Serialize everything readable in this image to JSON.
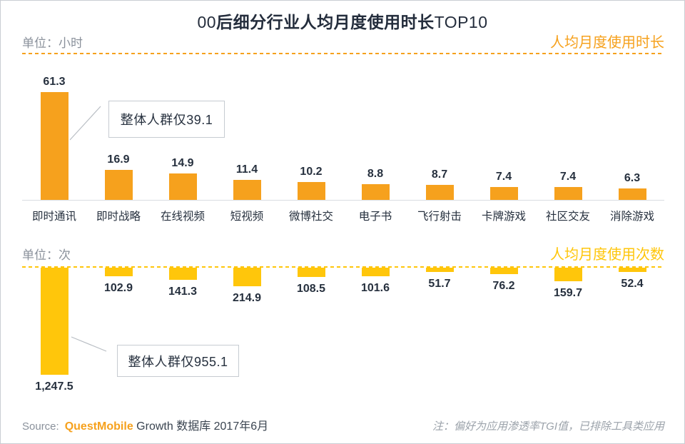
{
  "title": {
    "prefix": "00",
    "main": "后细分行业人均月度使用时长",
    "suffix": "TOP10"
  },
  "colors": {
    "orange": "#F6A11D",
    "yellow": "#FFC60B",
    "dark_text": "#26303E",
    "muted_text": "#8A919B",
    "axis_line": "#D9DDE2",
    "callout_border": "#C6CBD1",
    "connector_line": "#B9BEC4",
    "note_text": "#9BA2AA"
  },
  "top_section": {
    "unit_label": "单位：小时",
    "series_label": "人均月度使用时长",
    "callout_text": "整体人群仅39.1"
  },
  "bottom_section": {
    "unit_label": "单位：次",
    "series_label": "人均月度使用次数",
    "callout_text": "整体人群仅955.1"
  },
  "footer": {
    "source_label": "Source:",
    "brand": "QuestMobile",
    "source_rest": "Growth 数据库 2017年6月",
    "note": "注：偏好为应用渗透率TGI值，已排除工具类应用"
  },
  "chart_data": [
    {
      "type": "bar",
      "title": "人均月度使用时长",
      "unit": "小时",
      "direction": "up",
      "bar_color": "#F6A11D",
      "categories": [
        "即时通讯",
        "即时战略",
        "在线视频",
        "短视频",
        "微博社交",
        "电子书",
        "飞行射击",
        "卡牌游戏",
        "社区交友",
        "消除游戏"
      ],
      "values": [
        61.3,
        16.9,
        14.9,
        11.4,
        10.2,
        8.8,
        8.7,
        7.4,
        7.4,
        6.3
      ],
      "value_labels": [
        "61.3",
        "16.9",
        "14.9",
        "11.4",
        "10.2",
        "8.8",
        "8.7",
        "7.4",
        "7.4",
        "6.3"
      ],
      "annotation": "整体人群仅39.1",
      "ylim": [
        0,
        61.3
      ],
      "grid": false,
      "legend": "none"
    },
    {
      "type": "bar",
      "title": "人均月度使用次数",
      "unit": "次",
      "direction": "down",
      "bar_color": "#FFC60B",
      "categories": [
        "即时通讯",
        "即时战略",
        "在线视频",
        "短视频",
        "微博社交",
        "电子书",
        "飞行射击",
        "卡牌游戏",
        "社区交友",
        "消除游戏"
      ],
      "values": [
        1247.5,
        102.9,
        141.3,
        214.9,
        108.5,
        101.6,
        51.7,
        76.2,
        159.7,
        52.4
      ],
      "value_labels": [
        "1,247.5",
        "102.9",
        "141.3",
        "214.9",
        "108.5",
        "101.6",
        "51.7",
        "76.2",
        "159.7",
        "52.4"
      ],
      "annotation": "整体人群仅955.1",
      "ylim": [
        0,
        1247.5
      ],
      "grid": false,
      "legend": "none"
    }
  ]
}
